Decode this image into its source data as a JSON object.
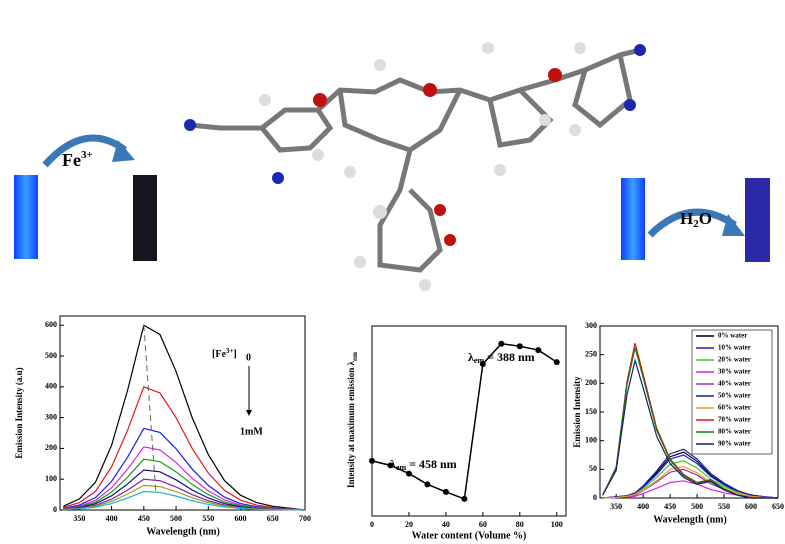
{
  "labels": {
    "fe": "Fe",
    "fe_charge": "3+",
    "h2o_h": "H",
    "h2o_sub": "2",
    "h2o_o": "O"
  },
  "chart_data": [
    {
      "type": "line",
      "xlabel": "Wavelength (nm)",
      "ylabel": "Emission Intensity (a.u)",
      "annotations": {
        "conc": "[Fe",
        "conc_charge": "3+",
        "conc_end": "]",
        "start": "0",
        "end": "1mM"
      },
      "xlim": [
        320,
        700
      ],
      "xticks": [
        350,
        400,
        450,
        500,
        550,
        600,
        650,
        700
      ],
      "ylim": [
        0,
        630
      ],
      "yticks": [
        0,
        100,
        200,
        300,
        400,
        500,
        600
      ],
      "x": [
        325,
        350,
        375,
        400,
        425,
        450,
        475,
        500,
        525,
        550,
        575,
        600,
        625,
        650,
        675,
        700
      ],
      "series": [
        {
          "color": "#000000",
          "values": [
            12,
            36,
            90,
            210,
            390,
            600,
            570,
            450,
            300,
            180,
            96,
            48,
            24,
            12,
            6,
            0
          ]
        },
        {
          "color": "#e8141e",
          "values": [
            8,
            24,
            60,
            140,
            260,
            400,
            380,
            300,
            200,
            120,
            64,
            32,
            16,
            8,
            4,
            0
          ]
        },
        {
          "color": "#1a1ae8",
          "values": [
            5,
            16,
            40,
            93,
            172,
            265,
            252,
            199,
            133,
            80,
            42,
            21,
            11,
            5,
            3,
            0
          ]
        },
        {
          "color": "#e020e0",
          "values": [
            4,
            12,
            31,
            72,
            133,
            205,
            195,
            154,
            103,
            62,
            33,
            16,
            8,
            4,
            2,
            0
          ]
        },
        {
          "color": "#10a010",
          "values": [
            3,
            10,
            25,
            58,
            107,
            165,
            157,
            124,
            83,
            50,
            26,
            13,
            7,
            3,
            2,
            0
          ]
        },
        {
          "color": "#101080",
          "values": [
            3,
            8,
            20,
            46,
            85,
            130,
            124,
            98,
            65,
            39,
            21,
            10,
            5,
            3,
            1,
            0
          ]
        },
        {
          "color": "#8020a0",
          "values": [
            2,
            6,
            15,
            35,
            65,
            100,
            95,
            75,
            50,
            30,
            16,
            8,
            4,
            2,
            1,
            0
          ]
        },
        {
          "color": "#a0a020",
          "values": [
            2,
            5,
            12,
            28,
            52,
            80,
            76,
            60,
            40,
            24,
            13,
            6,
            3,
            2,
            1,
            0
          ]
        },
        {
          "color": "#20b0d0",
          "values": [
            1,
            4,
            9,
            21,
            39,
            60,
            57,
            45,
            30,
            18,
            10,
            5,
            2,
            1,
            1,
            0
          ]
        }
      ]
    },
    {
      "type": "line",
      "markers": true,
      "xlabel": "Water content (Volume %)",
      "ylabel": "Intensity at maximum emission λ",
      "ylabel_sub": "em",
      "annotations": {
        "a_l": "λ",
        "a_sub": "em",
        "a_text": " = 458 nm",
        "b_l": "λ",
        "b_sub": "em",
        "b_text": " = 388 nm"
      },
      "xlim": [
        0,
        105
      ],
      "xticks": [
        0,
        20,
        40,
        60,
        80,
        100
      ],
      "ylim": [
        0,
        300
      ],
      "yticks": [],
      "x": [
        0,
        10,
        20,
        30,
        40,
        50,
        60,
        70,
        80,
        90,
        100
      ],
      "series": [
        {
          "color": "#000000",
          "values": [
            87,
            80,
            67,
            50,
            38,
            27,
            240,
            272,
            268,
            262,
            243
          ]
        }
      ]
    },
    {
      "type": "line",
      "legend": "upper right",
      "xlabel": "Wavelength (nm)",
      "ylabel": "Emission Intensity",
      "xlim": [
        320,
        650
      ],
      "xticks": [
        350,
        400,
        450,
        500,
        550,
        600,
        650
      ],
      "ylim": [
        0,
        300
      ],
      "yticks": [
        0,
        50,
        100,
        150,
        200,
        250,
        300
      ],
      "x": [
        325,
        350,
        370,
        385,
        400,
        425,
        450,
        475,
        500,
        525,
        550,
        575,
        600,
        625,
        650
      ],
      "series": [
        {
          "name": "0% water",
          "color": "#000000",
          "values": [
            0,
            2,
            4,
            8,
            20,
            44,
            72,
            80,
            64,
            40,
            24,
            12,
            5,
            2,
            0
          ]
        },
        {
          "name": "10% water",
          "color": "#1a1ae8",
          "values": [
            0,
            2,
            4,
            8,
            19,
            41,
            68,
            75,
            60,
            38,
            23,
            11,
            5,
            2,
            0
          ]
        },
        {
          "name": "20% water",
          "color": "#30d030",
          "values": [
            0,
            1,
            3,
            7,
            16,
            36,
            59,
            65,
            52,
            33,
            20,
            10,
            4,
            1,
            0
          ]
        },
        {
          "name": "30% water",
          "color": "#e020e0",
          "values": [
            0,
            1,
            2,
            3,
            8,
            17,
            27,
            30,
            24,
            15,
            9,
            5,
            2,
            1,
            0
          ]
        },
        {
          "name": "40% water",
          "color": "#9030c0",
          "values": [
            0,
            1,
            3,
            5,
            13,
            28,
            45,
            50,
            40,
            25,
            15,
            8,
            3,
            1,
            0
          ]
        },
        {
          "name": "50% water",
          "color": "#202090",
          "values": [
            0,
            2,
            4,
            9,
            21,
            47,
            77,
            85,
            68,
            43,
            26,
            13,
            5,
            2,
            0
          ]
        },
        {
          "name": "60% water",
          "color": "#f0a020",
          "values": [
            0,
            1,
            3,
            6,
            14,
            30,
            50,
            55,
            44,
            28,
            17,
            8,
            3,
            1,
            0
          ]
        },
        {
          "name": "70% water",
          "color": "#e01010",
          "values": [
            5,
            54,
            203,
            270,
            216,
            122,
            68,
            41,
            27,
            32,
            16,
            5,
            0,
            0,
            0
          ]
        },
        {
          "name": "80% water",
          "color": "#108010",
          "values": [
            5,
            52,
            197,
            262,
            210,
            118,
            66,
            39,
            26,
            31,
            16,
            5,
            0,
            0,
            0
          ]
        },
        {
          "name": "90% water",
          "color": "#102070",
          "values": [
            5,
            48,
            180,
            240,
            192,
            108,
            60,
            36,
            24,
            29,
            14,
            5,
            0,
            0,
            0
          ]
        }
      ]
    }
  ]
}
